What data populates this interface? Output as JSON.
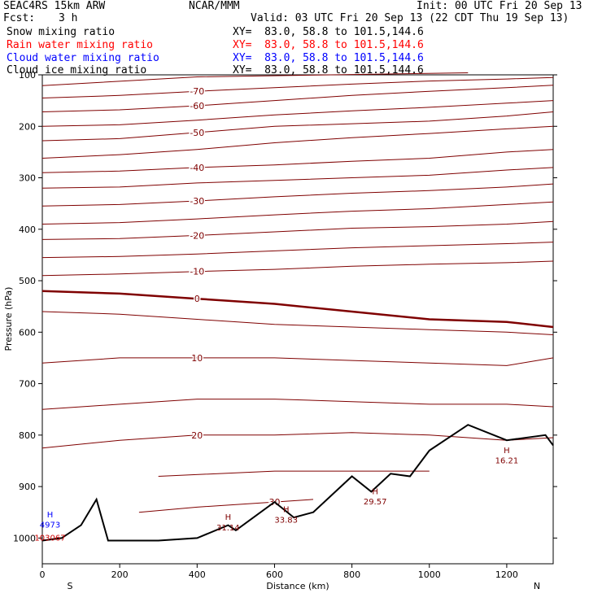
{
  "header": {
    "model": "SEAC4RS 15km ARW",
    "center": "NCAR/MMM",
    "init": "Init: 00 UTC Fri 20 Sep 13",
    "fcst_label": "Fcst:",
    "fcst_value": "3 h",
    "valid": "Valid: 03 UTC Fri 20 Sep 13 (22 CDT Thu 19 Sep 13)"
  },
  "fields": [
    {
      "name": "Snow mixing ratio",
      "xy": "XY=  83.0, 58.8 to 101.5,144.6",
      "color": "#000000"
    },
    {
      "name": "Rain water mixing ratio",
      "xy": "XY=  83.0, 58.8 to 101.5,144.6",
      "color": "#ff0000"
    },
    {
      "name": "Cloud water mixing ratio",
      "xy": "XY=  83.0, 58.8 to 101.5,144.6",
      "color": "#0000ff"
    },
    {
      "name": "Cloud ice mixing ratio",
      "xy": "XY=  83.0, 58.8 to 101.5,144.6",
      "color": "#000000"
    }
  ],
  "chart_data": {
    "type": "line",
    "description_of_content": "Vertical cross-section: isotherms (degC) vs distance and pressure with terrain profile",
    "xlabel": "Distance (km)",
    "ylabel": "Pressure (hPa)",
    "xlim": [
      0,
      1320
    ],
    "ylim": [
      1050,
      100
    ],
    "x_ticks": [
      0,
      200,
      400,
      600,
      800,
      1000,
      1200
    ],
    "y_ticks": [
      100,
      200,
      300,
      400,
      500,
      600,
      700,
      800,
      900,
      1000
    ],
    "y_tick_labels": [
      "100",
      "200",
      "300",
      "400",
      "500",
      "600",
      "700",
      "800",
      "900",
      "1000"
    ],
    "x_end_labels": {
      "left": "S",
      "right": "N"
    },
    "isotherm_color": "#7f0000",
    "terrain_color": "#000000",
    "isotherms": [
      {
        "label": "",
        "points": [
          [
            0,
            121
          ],
          [
            400,
            104
          ],
          [
            1100,
            96
          ]
        ]
      },
      {
        "label": "-70",
        "points": [
          [
            0,
            145
          ],
          [
            200,
            140
          ],
          [
            400,
            132
          ],
          [
            600,
            125
          ],
          [
            800,
            118
          ],
          [
            1000,
            112
          ],
          [
            1200,
            108
          ],
          [
            1320,
            105
          ]
        ]
      },
      {
        "label": "-60",
        "points": [
          [
            0,
            172
          ],
          [
            200,
            168
          ],
          [
            400,
            160
          ],
          [
            600,
            150
          ],
          [
            800,
            140
          ],
          [
            1000,
            132
          ],
          [
            1200,
            125
          ],
          [
            1320,
            120
          ]
        ]
      },
      {
        "label": "",
        "points": [
          [
            0,
            200
          ],
          [
            200,
            197
          ],
          [
            400,
            188
          ],
          [
            600,
            178
          ],
          [
            800,
            170
          ],
          [
            1000,
            163
          ],
          [
            1200,
            155
          ],
          [
            1320,
            150
          ]
        ]
      },
      {
        "label": "-50",
        "points": [
          [
            0,
            228
          ],
          [
            200,
            224
          ],
          [
            400,
            212
          ],
          [
            600,
            200
          ],
          [
            800,
            195
          ],
          [
            1000,
            190
          ],
          [
            1200,
            180
          ],
          [
            1320,
            172
          ]
        ]
      },
      {
        "label": "",
        "points": [
          [
            0,
            262
          ],
          [
            200,
            255
          ],
          [
            400,
            245
          ],
          [
            600,
            232
          ],
          [
            800,
            222
          ],
          [
            1000,
            214
          ],
          [
            1200,
            205
          ],
          [
            1320,
            200
          ]
        ]
      },
      {
        "label": "-40",
        "points": [
          [
            0,
            290
          ],
          [
            200,
            287
          ],
          [
            400,
            280
          ],
          [
            600,
            275
          ],
          [
            800,
            268
          ],
          [
            1000,
            262
          ],
          [
            1200,
            250
          ],
          [
            1320,
            245
          ]
        ]
      },
      {
        "label": "",
        "points": [
          [
            0,
            320
          ],
          [
            200,
            318
          ],
          [
            400,
            310
          ],
          [
            600,
            305
          ],
          [
            800,
            300
          ],
          [
            1000,
            295
          ],
          [
            1200,
            285
          ],
          [
            1320,
            280
          ]
        ]
      },
      {
        "label": "-30",
        "points": [
          [
            0,
            355
          ],
          [
            200,
            352
          ],
          [
            400,
            345
          ],
          [
            600,
            337
          ],
          [
            800,
            330
          ],
          [
            1000,
            325
          ],
          [
            1200,
            318
          ],
          [
            1320,
            312
          ]
        ]
      },
      {
        "label": "",
        "points": [
          [
            0,
            390
          ],
          [
            200,
            387
          ],
          [
            400,
            380
          ],
          [
            600,
            372
          ],
          [
            800,
            365
          ],
          [
            1000,
            360
          ],
          [
            1200,
            352
          ],
          [
            1320,
            347
          ]
        ]
      },
      {
        "label": "-20",
        "points": [
          [
            0,
            420
          ],
          [
            200,
            418
          ],
          [
            400,
            412
          ],
          [
            600,
            405
          ],
          [
            800,
            398
          ],
          [
            1000,
            395
          ],
          [
            1200,
            390
          ],
          [
            1320,
            385
          ]
        ]
      },
      {
        "label": "",
        "points": [
          [
            0,
            455
          ],
          [
            200,
            453
          ],
          [
            400,
            448
          ],
          [
            600,
            442
          ],
          [
            800,
            436
          ],
          [
            1000,
            432
          ],
          [
            1200,
            428
          ],
          [
            1320,
            425
          ]
        ]
      },
      {
        "label": "-10",
        "points": [
          [
            0,
            490
          ],
          [
            200,
            487
          ],
          [
            400,
            482
          ],
          [
            600,
            478
          ],
          [
            800,
            472
          ],
          [
            1000,
            468
          ],
          [
            1200,
            465
          ],
          [
            1320,
            462
          ]
        ]
      },
      {
        "label": "0",
        "points": [
          [
            0,
            520
          ],
          [
            200,
            525
          ],
          [
            400,
            535
          ],
          [
            600,
            545
          ],
          [
            800,
            560
          ],
          [
            1000,
            575
          ],
          [
            1200,
            580
          ],
          [
            1320,
            590
          ]
        ]
      },
      {
        "label": "",
        "points": [
          [
            0,
            560
          ],
          [
            200,
            565
          ],
          [
            400,
            575
          ],
          [
            600,
            585
          ],
          [
            800,
            590
          ],
          [
            1000,
            595
          ],
          [
            1200,
            600
          ],
          [
            1320,
            605
          ]
        ]
      },
      {
        "label": "10",
        "points": [
          [
            0,
            660
          ],
          [
            200,
            650
          ],
          [
            400,
            650
          ],
          [
            600,
            650
          ],
          [
            800,
            655
          ],
          [
            1000,
            660
          ],
          [
            1200,
            665
          ],
          [
            1320,
            650
          ]
        ]
      },
      {
        "label": "",
        "points": [
          [
            0,
            750
          ],
          [
            200,
            740
          ],
          [
            400,
            730
          ],
          [
            600,
            730
          ],
          [
            800,
            735
          ],
          [
            1000,
            740
          ],
          [
            1200,
            740
          ],
          [
            1320,
            745
          ]
        ]
      },
      {
        "label": "20",
        "points": [
          [
            0,
            825
          ],
          [
            200,
            810
          ],
          [
            400,
            800
          ],
          [
            600,
            800
          ],
          [
            800,
            795
          ],
          [
            1000,
            800
          ],
          [
            1200,
            810
          ],
          [
            1320,
            805
          ]
        ]
      },
      {
        "label": "",
        "points": [
          [
            300,
            880
          ],
          [
            600,
            870
          ],
          [
            800,
            870
          ],
          [
            1000,
            870
          ]
        ]
      },
      {
        "label": "30",
        "points": [
          [
            250,
            950
          ],
          [
            400,
            940
          ],
          [
            600,
            930
          ],
          [
            700,
            925
          ]
        ]
      }
    ],
    "terrain": [
      [
        0,
        1005
      ],
      [
        50,
        1000
      ],
      [
        100,
        975
      ],
      [
        140,
        925
      ],
      [
        170,
        1005
      ],
      [
        300,
        1005
      ],
      [
        400,
        1000
      ],
      [
        480,
        975
      ],
      [
        500,
        985
      ],
      [
        600,
        930
      ],
      [
        650,
        960
      ],
      [
        700,
        950
      ],
      [
        800,
        880
      ],
      [
        850,
        910
      ],
      [
        900,
        875
      ],
      [
        950,
        880
      ],
      [
        1000,
        830
      ],
      [
        1100,
        780
      ],
      [
        1200,
        810
      ],
      [
        1300,
        800
      ],
      [
        1320,
        820
      ]
    ],
    "annotations": [
      {
        "text": "H",
        "x": 20,
        "y": 960,
        "color": "#0000ff"
      },
      {
        "text": "4973",
        "x": 20,
        "y": 980,
        "color": "#0000ff"
      },
      {
        "text": "103067",
        "x": 20,
        "y": 1005,
        "color": "#cc0000"
      },
      {
        "text": "H",
        "x": 480,
        "y": 965,
        "color": "#7f0000"
      },
      {
        "text": "31.14",
        "x": 480,
        "y": 985,
        "color": "#7f0000"
      },
      {
        "text": "H",
        "x": 630,
        "y": 950,
        "color": "#7f0000"
      },
      {
        "text": "33.83",
        "x": 630,
        "y": 970,
        "color": "#7f0000"
      },
      {
        "text": "H",
        "x": 860,
        "y": 915,
        "color": "#7f0000"
      },
      {
        "text": "29.57",
        "x": 860,
        "y": 935,
        "color": "#7f0000"
      },
      {
        "text": "H",
        "x": 1200,
        "y": 835,
        "color": "#7f0000"
      },
      {
        "text": "16.21",
        "x": 1200,
        "y": 855,
        "color": "#7f0000"
      }
    ]
  }
}
